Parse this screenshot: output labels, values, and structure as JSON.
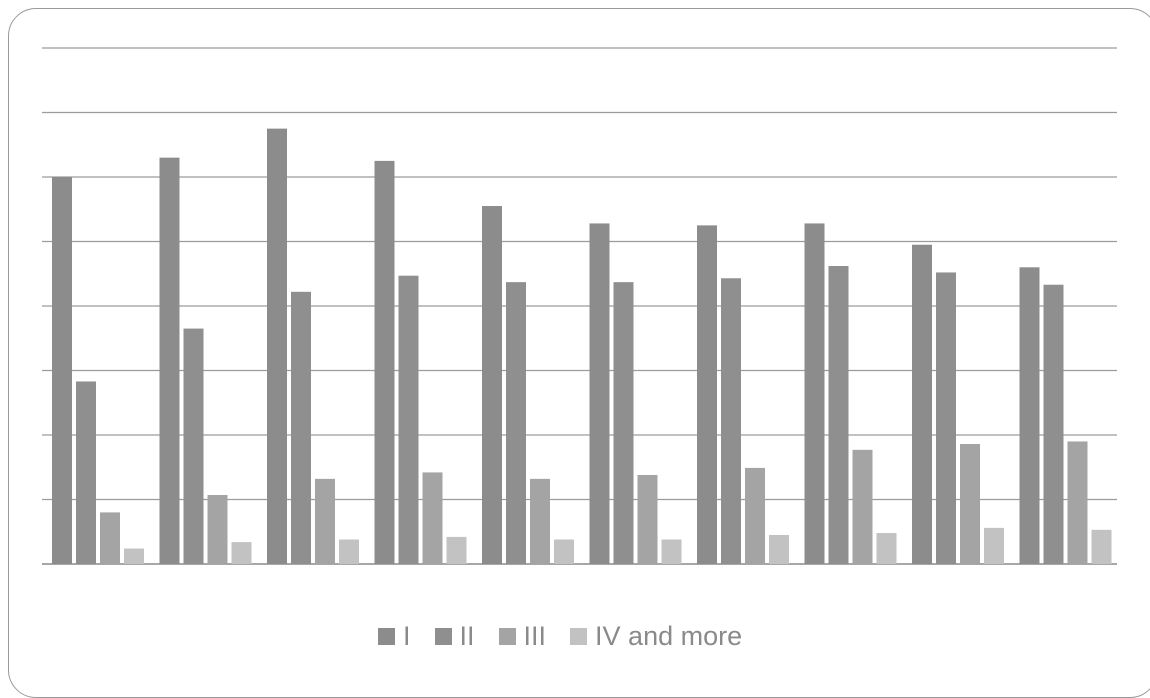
{
  "chart_data": {
    "type": "bar",
    "title": "",
    "xlabel": "",
    "ylabel": "",
    "grid": true,
    "legend_position": "bottom",
    "ylim": [
      0,
      8
    ],
    "categories": [
      "",
      "",
      "",
      "",
      "",
      "",
      "",
      "",
      "",
      ""
    ],
    "series": [
      {
        "name": "I",
        "color": "#8c8c8c",
        "values": [
          6.0,
          6.3,
          6.75,
          6.25,
          5.55,
          5.28,
          5.25,
          5.28,
          4.95,
          4.6
        ]
      },
      {
        "name": "II",
        "color": "#8f8f8f",
        "values": [
          2.83,
          3.65,
          4.22,
          4.47,
          4.37,
          4.37,
          4.43,
          4.62,
          4.52,
          4.33
        ]
      },
      {
        "name": "III",
        "color": "#a4a4a4",
        "values": [
          0.8,
          1.07,
          1.32,
          1.42,
          1.32,
          1.38,
          1.49,
          1.77,
          1.86,
          1.9
        ]
      },
      {
        "name": "IV and more",
        "color": "#c2c2c2",
        "values": [
          0.24,
          0.34,
          0.38,
          0.42,
          0.38,
          0.38,
          0.45,
          0.48,
          0.56,
          0.53
        ]
      }
    ]
  }
}
